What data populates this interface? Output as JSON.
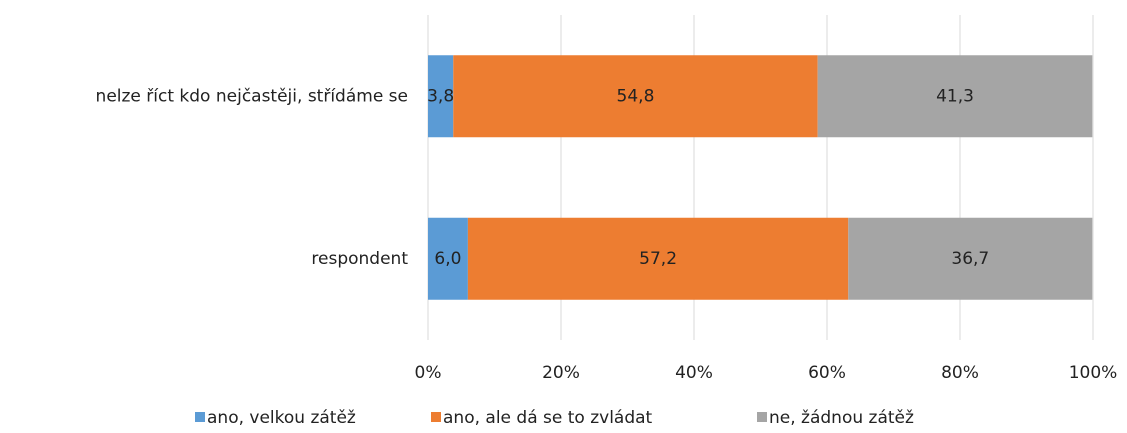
{
  "chart_data": {
    "type": "bar",
    "categories": [
      "nelze říct kdo nejčastěji, střídáme se",
      "respondent"
    ],
    "series": [
      {
        "name": "ano, velkou zátěž",
        "color": "#5b9bd5",
        "values": [
          3.8,
          6.0
        ],
        "value_labels": [
          "3,8",
          "6,0"
        ]
      },
      {
        "name": "ano, ale dá se to zvládat",
        "color": "#ed7d31",
        "values": [
          54.8,
          57.2
        ],
        "value_labels": [
          "54,8",
          "57,2"
        ]
      },
      {
        "name": "ne, žádnou zátěž",
        "color": "#a5a5a5",
        "values": [
          41.3,
          36.7
        ],
        "value_labels": [
          "41,3",
          "36,7"
        ]
      }
    ],
    "xlim": [
      0,
      100
    ],
    "xticks": [
      {
        "value": 0,
        "label": "0%"
      },
      {
        "value": 20,
        "label": "20%"
      },
      {
        "value": 40,
        "label": "40%"
      },
      {
        "value": 60,
        "label": "60%"
      },
      {
        "value": 80,
        "label": "80%"
      },
      {
        "value": 100,
        "label": "100%"
      }
    ],
    "grid": true
  }
}
